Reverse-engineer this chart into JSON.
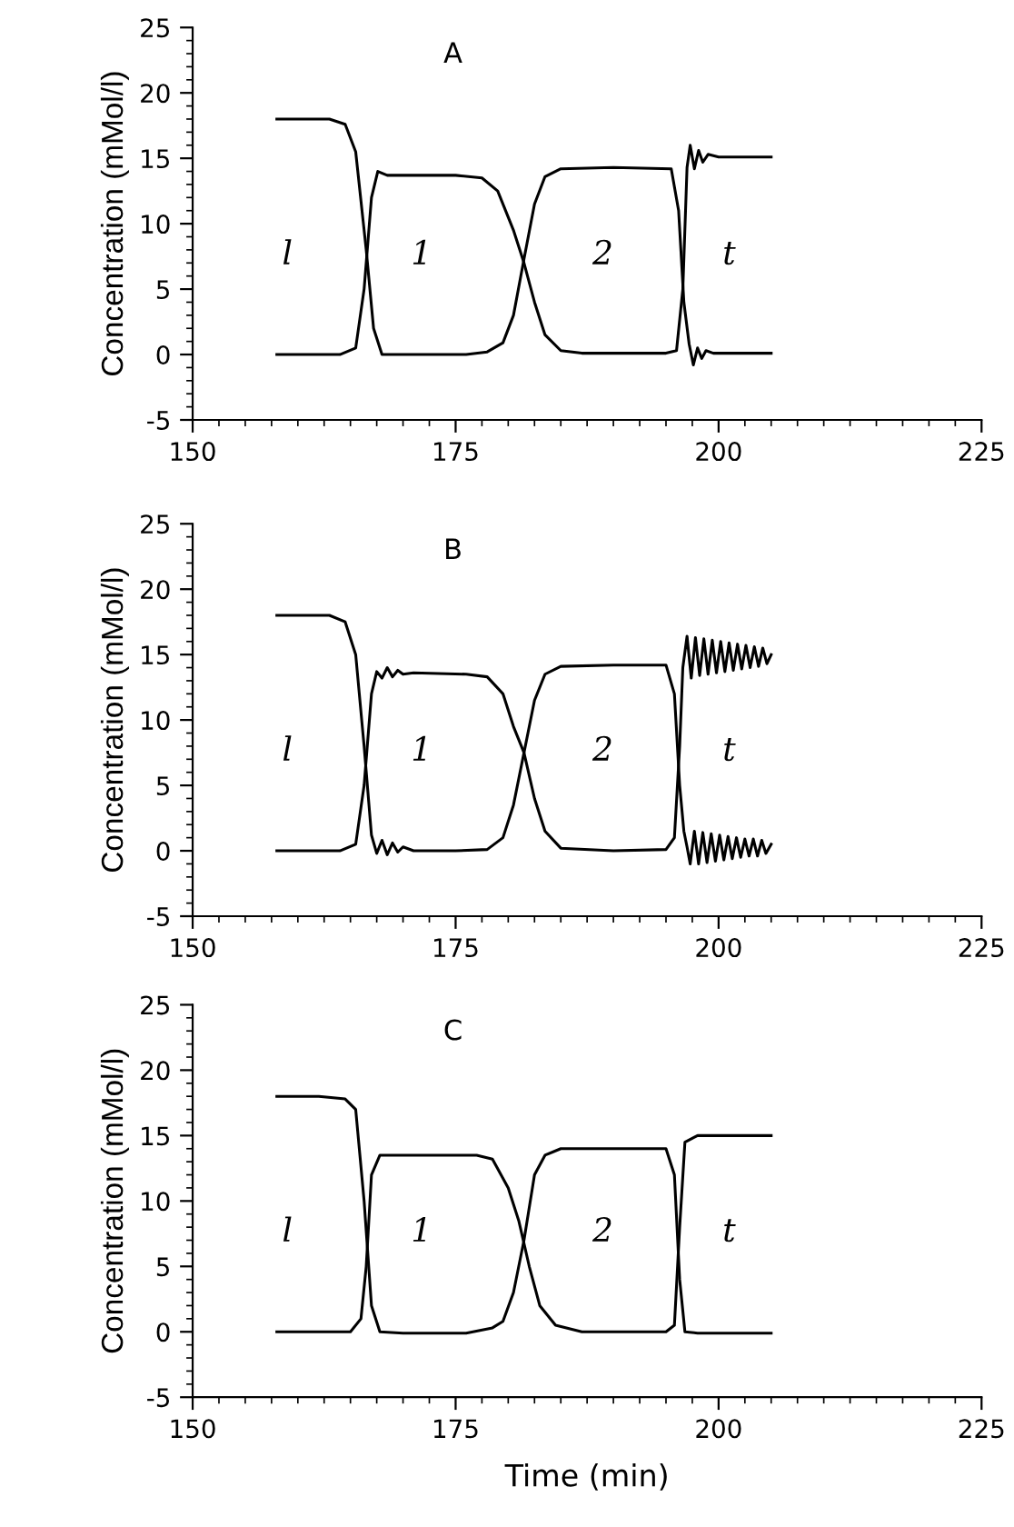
{
  "chart_data": [
    {
      "type": "line",
      "title": "A",
      "ylabel": "Concentration (mMol/l)",
      "xlim": [
        150,
        225
      ],
      "xticks": [
        150,
        175,
        200,
        225
      ],
      "ylim": [
        -5,
        25
      ],
      "yticks": [
        -5,
        0,
        5,
        10,
        15,
        20,
        25
      ],
      "line_style": "solid",
      "annotations": [
        "l",
        "1",
        "2",
        "t"
      ],
      "series": [
        {
          "color": "#000000",
          "x": [
            158,
            163,
            164.5,
            165.5,
            166.5,
            167.2,
            168,
            172,
            176,
            178,
            179.5,
            180.5,
            181.5,
            182.5,
            183.5,
            185,
            190,
            195.5,
            196.2,
            196.7,
            197.2,
            197.6,
            198,
            198.4,
            198.8,
            199.5,
            201,
            205
          ],
          "values": [
            18,
            18,
            17.6,
            15.5,
            8,
            2,
            0,
            0,
            0,
            0.2,
            0.9,
            3,
            7.3,
            11.5,
            13.6,
            14.2,
            14.3,
            14.2,
            11,
            4,
            0.8,
            -0.8,
            0.5,
            -0.3,
            0.3,
            0.1,
            0.1,
            0.1
          ]
        },
        {
          "color": "#000000",
          "x": [
            158,
            164,
            165.5,
            166.3,
            167,
            167.6,
            168.5,
            175,
            177.5,
            179,
            180.5,
            181.5,
            182.5,
            183.5,
            185,
            187,
            195,
            196,
            196.6,
            197,
            197.3,
            197.7,
            198.1,
            198.5,
            199,
            200,
            205
          ],
          "values": [
            0,
            0,
            0.5,
            5,
            12,
            14,
            13.7,
            13.7,
            13.5,
            12.5,
            9.5,
            7,
            4,
            1.5,
            0.3,
            0.1,
            0.1,
            0.3,
            5,
            14.3,
            16,
            14.2,
            15.6,
            14.7,
            15.3,
            15.1,
            15.1
          ]
        }
      ]
    },
    {
      "type": "line",
      "title": "B",
      "ylabel": "Concentration (mMol/l)",
      "xlim": [
        150,
        225
      ],
      "xticks": [
        150,
        175,
        200,
        225
      ],
      "ylim": [
        -5,
        25
      ],
      "yticks": [
        -5,
        0,
        5,
        10,
        15,
        20,
        25
      ],
      "line_style": "solid",
      "annotations": [
        "l",
        "1",
        "2",
        "t"
      ],
      "series": [
        {
          "color": "#000000",
          "x": [
            158,
            163,
            164.5,
            165.5,
            166.3,
            167,
            167.5,
            168,
            168.5,
            169,
            169.5,
            170,
            171,
            175,
            178,
            179.5,
            180.5,
            181.5,
            182.5,
            183.5,
            185,
            190,
            195,
            195.8,
            196.3,
            196.7,
            197,
            197.3,
            197.7,
            198.1,
            198.5,
            198.9,
            199.3,
            199.7,
            200.1,
            200.5,
            200.9,
            201.3,
            201.7,
            202.1,
            202.5,
            202.9,
            203.3,
            203.7,
            204.1,
            204.5,
            205
          ],
          "values": [
            18,
            18,
            17.5,
            15,
            8,
            1.2,
            -0.2,
            0.8,
            -0.3,
            0.6,
            -0.1,
            0.3,
            0,
            0,
            0.1,
            1,
            3.5,
            7.5,
            11.5,
            13.5,
            14.1,
            14.2,
            14.2,
            12,
            5,
            1.5,
            0.3,
            -1,
            1.5,
            -1,
            1.4,
            -0.9,
            1.3,
            -0.8,
            1.2,
            -0.7,
            1.1,
            -0.6,
            1,
            -0.5,
            0.9,
            -0.4,
            0.9,
            -0.4,
            0.8,
            -0.2,
            0.5
          ]
        },
        {
          "color": "#000000",
          "x": [
            158,
            164,
            165.5,
            166.3,
            167,
            167.5,
            168,
            168.5,
            169,
            169.5,
            170,
            171,
            176,
            178,
            179.5,
            180.5,
            181.5,
            182.5,
            183.5,
            185,
            190,
            195,
            195.8,
            196.3,
            196.6,
            197,
            197.4,
            197.8,
            198.2,
            198.6,
            199,
            199.4,
            199.8,
            200.2,
            200.6,
            201,
            201.4,
            201.8,
            202.2,
            202.6,
            203,
            203.4,
            203.8,
            204.2,
            204.6,
            205
          ],
          "values": [
            0,
            0,
            0.5,
            5,
            12,
            13.7,
            13.2,
            14,
            13.3,
            13.8,
            13.5,
            13.6,
            13.5,
            13.3,
            12,
            9.5,
            7.5,
            4,
            1.5,
            0.2,
            0,
            0.1,
            1,
            8,
            14,
            16.4,
            13.2,
            16.3,
            13.4,
            16.2,
            13.5,
            16.1,
            13.6,
            16,
            13.7,
            15.9,
            13.8,
            15.8,
            13.9,
            15.7,
            14,
            15.6,
            14.1,
            15.5,
            14.3,
            15
          ]
        }
      ]
    },
    {
      "type": "line",
      "title": "C",
      "xlabel": "Time (min)",
      "ylabel": "Concentration (mMol/l)",
      "xlim": [
        150,
        225
      ],
      "xticks": [
        150,
        175,
        200,
        225
      ],
      "ylim": [
        -5,
        25
      ],
      "yticks": [
        -5,
        0,
        5,
        10,
        15,
        20,
        25
      ],
      "line_style": "solid",
      "annotations": [
        "l",
        "1",
        "2",
        "t"
      ],
      "series": [
        {
          "color": "#000000",
          "x": [
            158,
            162,
            164.5,
            165.5,
            166.3,
            167,
            167.8,
            170,
            176,
            178.5,
            179.5,
            180.5,
            181.5,
            182.5,
            183.5,
            185,
            190,
            195,
            195.8,
            196.3,
            196.8,
            198,
            205
          ],
          "values": [
            18,
            18,
            17.8,
            17,
            10,
            2,
            0,
            -0.1,
            -0.1,
            0.3,
            0.8,
            3,
            7,
            12,
            13.5,
            14,
            14,
            14,
            12,
            4,
            0,
            -0.1,
            -0.1
          ]
        },
        {
          "color": "#000000",
          "x": [
            158,
            165,
            166,
            166.5,
            167,
            167.8,
            170,
            177,
            178.5,
            180,
            181,
            182,
            183,
            184.5,
            187,
            195,
            195.8,
            196.3,
            196.8,
            198,
            205
          ],
          "values": [
            0,
            0,
            1,
            5,
            12,
            13.5,
            13.5,
            13.5,
            13.2,
            11,
            8.5,
            5,
            2,
            0.5,
            0,
            0,
            0.5,
            8,
            14.5,
            15,
            15
          ]
        }
      ]
    }
  ]
}
